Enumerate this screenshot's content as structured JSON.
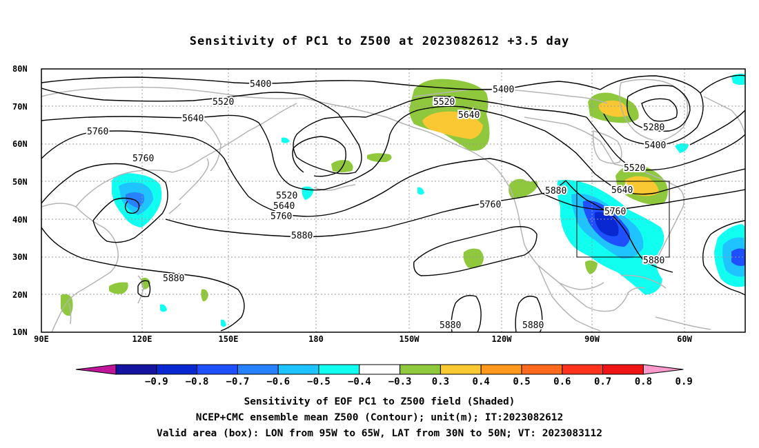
{
  "title": "Sensitivity of PC1 to Z500 at 2023082612 +3.5 day",
  "captions": {
    "line1": "Sensitivity of EOF PC1 to Z500 field (Shaded)",
    "line2": "NCEP+CMC ensemble mean Z500 (Contour); unit(m); IT:2023082612",
    "line3": "Valid area (box): LON from 95W to 65W, LAT from 30N to 50N; VT: 2023083112"
  },
  "map": {
    "lon_labels": [
      "90E",
      "120E",
      "150E",
      "180",
      "150W",
      "120W",
      "90W",
      "60W"
    ],
    "lat_labels": [
      "80N",
      "70N",
      "60N",
      "50N",
      "40N",
      "30N",
      "20N",
      "10N"
    ],
    "contour_labels": [
      "5400",
      "5520",
      "5640",
      "5760",
      "5760",
      "5880",
      "5880",
      "5520",
      "5640",
      "5760",
      "5520",
      "5640",
      "5400",
      "5280",
      "5400",
      "5520",
      "5640",
      "5760",
      "5880",
      "5760",
      "5880",
      "5880",
      "5880"
    ],
    "valid_box": {
      "lon_from": "95W",
      "lon_to": "65W",
      "lat_from": "30N",
      "lat_to": "50N"
    }
  },
  "colorbar": {
    "labels": [
      "−0.9",
      "−0.8",
      "−0.7",
      "−0.6",
      "−0.5",
      "−0.4",
      "−0.3",
      "0.3",
      "0.4",
      "0.5",
      "0.6",
      "0.7",
      "0.8",
      "0.9"
    ],
    "colors": [
      "#c0169a",
      "#1414a0",
      "#0a28d2",
      "#1e50ff",
      "#2882ff",
      "#1ec3ff",
      "#10fff0",
      "#ffffff",
      "#8fc83c",
      "#fac832",
      "#ff9a1e",
      "#ff6a1e",
      "#ff321e",
      "#f01414",
      "#ff9acc"
    ]
  },
  "colors": {
    "land_outline": "#b4b4b4",
    "grid": "#999999",
    "contour": "#000000",
    "positive": "#8fc83c",
    "positive_strong": "#fac832",
    "negative": "#10fff0",
    "negative_mid": "#1ec3ff",
    "negative_strong": "#1e50ff",
    "negative_deep": "#0a28d2"
  }
}
